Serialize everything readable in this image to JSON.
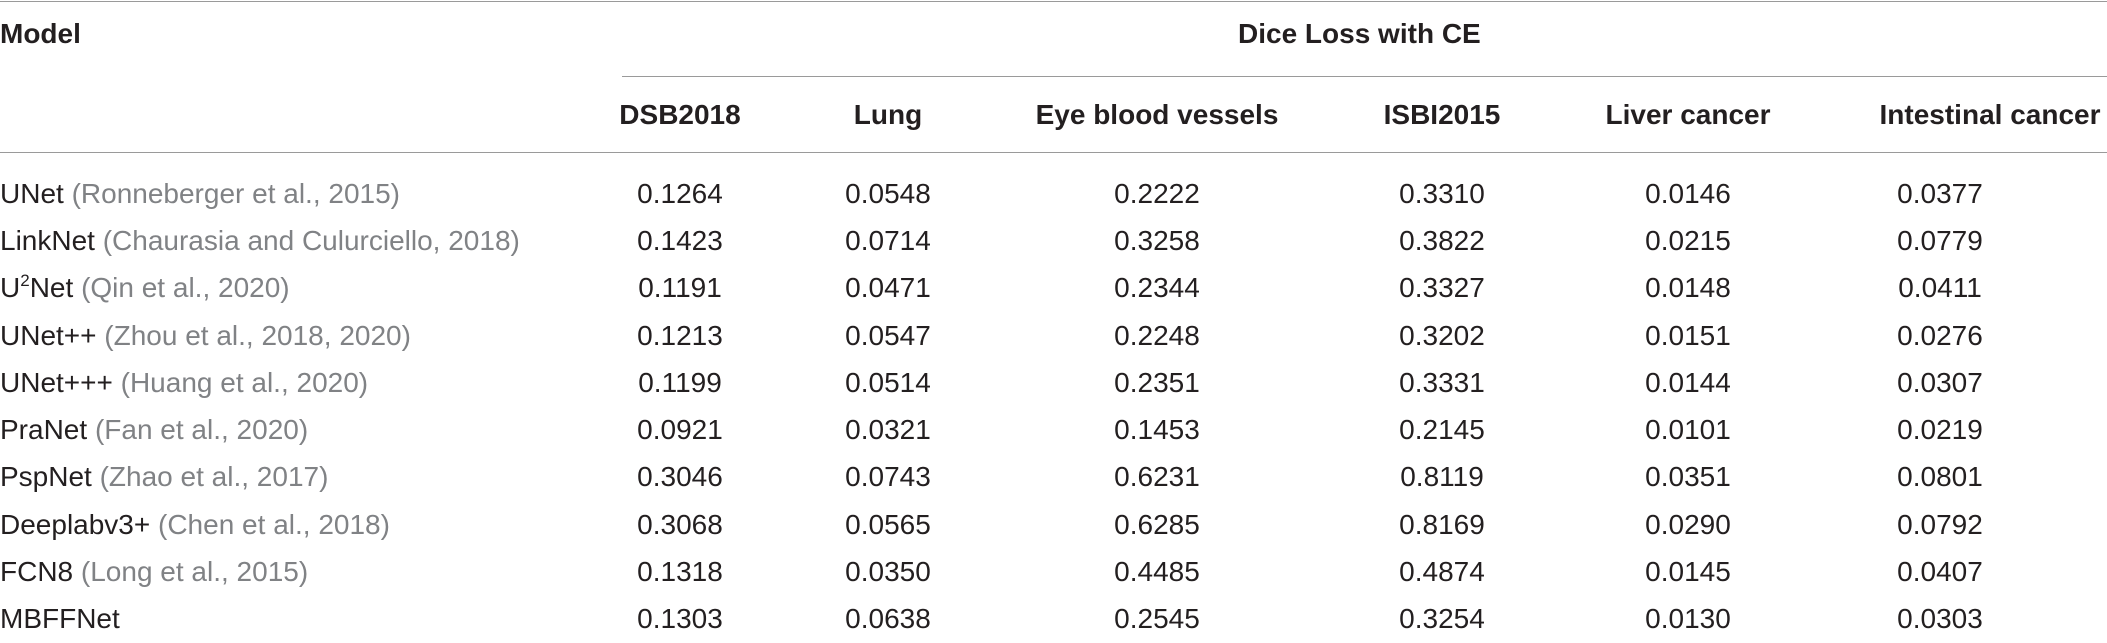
{
  "header": {
    "model_label": "Model",
    "group_label": "Dice Loss with CE",
    "columns": [
      "DSB2018",
      "Lung",
      "Eye blood vessels",
      "ISBI2015",
      "Liver cancer",
      "Intestinal cancer"
    ]
  },
  "rows": [
    {
      "name": "UNet",
      "cite": "(Ronneberger et al., 2015)",
      "values": [
        "0.1264",
        "0.0548",
        "0.2222",
        "0.3310",
        "0.0146",
        "0.0377"
      ]
    },
    {
      "name": "LinkNet",
      "cite": "(Chaurasia and Culurciello, 2018)",
      "values": [
        "0.1423",
        "0.0714",
        "0.3258",
        "0.3822",
        "0.0215",
        "0.0779"
      ]
    },
    {
      "name_pre": "U",
      "name_sup": "2",
      "name": "Net",
      "cite": "(Qin et al., 2020)",
      "values": [
        "0.1191",
        "0.0471",
        "0.2344",
        "0.3327",
        "0.0148",
        "0.0411"
      ]
    },
    {
      "name": "UNet++",
      "cite": "(Zhou et al., 2018, 2020)",
      "values": [
        "0.1213",
        "0.0547",
        "0.2248",
        "0.3202",
        "0.0151",
        "0.0276"
      ]
    },
    {
      "name": "UNet+++",
      "cite": "(Huang et al., 2020)",
      "values": [
        "0.1199",
        "0.0514",
        "0.2351",
        "0.3331",
        "0.0144",
        "0.0307"
      ]
    },
    {
      "name": "PraNet",
      "cite": "(Fan et al., 2020)",
      "values": [
        "0.0921",
        "0.0321",
        "0.1453",
        "0.2145",
        "0.0101",
        "0.0219"
      ]
    },
    {
      "name": "PspNet",
      "cite": "(Zhao et al., 2017)",
      "values": [
        "0.3046",
        "0.0743",
        "0.6231",
        "0.8119",
        "0.0351",
        "0.0801"
      ]
    },
    {
      "name": "Deeplabv3+",
      "cite": "(Chen et al., 2018)",
      "values": [
        "0.3068",
        "0.0565",
        "0.6285",
        "0.8169",
        "0.0290",
        "0.0792"
      ]
    },
    {
      "name": "FCN8",
      "cite": "(Long et al., 2015)",
      "values": [
        "0.1318",
        "0.0350",
        "0.4485",
        "0.4874",
        "0.0145",
        "0.0407"
      ]
    },
    {
      "name": "MBFFNet",
      "cite": "",
      "values": [
        "0.1303",
        "0.0638",
        "0.2545",
        "0.3254",
        "0.0130",
        "0.0303"
      ]
    }
  ]
}
